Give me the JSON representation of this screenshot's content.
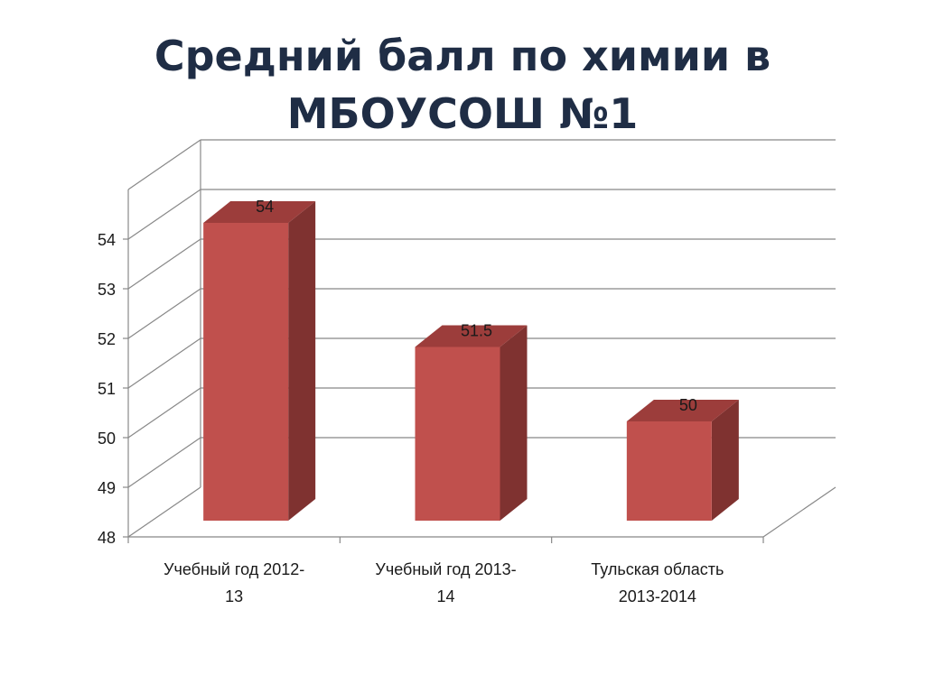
{
  "slide": {
    "title_line1": "Средний балл по химии в",
    "title_line2": "МБОУСОШ №1"
  },
  "chart_data": {
    "type": "bar",
    "title": "Средний балл по химии в МБОУСОШ №1",
    "categories": [
      [
        "Учебный год 2012-",
        "13"
      ],
      [
        "Учебный год 2013-",
        "14"
      ],
      [
        "Тульская область",
        "2013-2014"
      ]
    ],
    "values": [
      54,
      51.5,
      50
    ],
    "data_labels": [
      "54",
      "51.5",
      "50"
    ],
    "ylim": [
      48,
      55
    ],
    "yticks": [
      48,
      49,
      50,
      51,
      52,
      53,
      54
    ],
    "grid": true,
    "three_d": true,
    "colors": {
      "bar_front": "#c0504d",
      "bar_side": "#7f3230",
      "bar_top": "#9c3d3b",
      "grid": "#888888"
    }
  }
}
